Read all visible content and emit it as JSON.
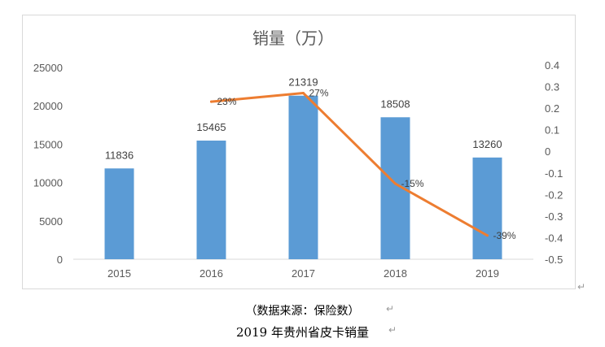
{
  "chart_data": {
    "type": "bar",
    "title": "销量（万）",
    "categories": [
      "2015",
      "2016",
      "2017",
      "2018",
      "2019"
    ],
    "series": [
      {
        "values": [
          11836,
          15465,
          21319,
          18508,
          13260
        ],
        "kind": "bar",
        "axis": "left",
        "color": "#5b9bd5"
      },
      {
        "values": [
          null,
          0.23,
          0.27,
          -0.15,
          -0.39
        ],
        "kind": "line",
        "axis": "right",
        "color": "#ed7d31"
      }
    ],
    "bar_labels": [
      "11836",
      "15465",
      "21319",
      "18508",
      "13260"
    ],
    "line_labels": [
      "",
      "23%",
      "27%",
      "-15%",
      "-39%"
    ],
    "ylim_left": [
      0,
      25000
    ],
    "yticks_left": [
      "25000",
      "20000",
      "15000",
      "10000",
      "5000",
      "0"
    ],
    "ylim_right": [
      -0.5,
      0.4
    ],
    "yticks_right": [
      "0.4",
      "0.3",
      "0.2",
      "0.1",
      "0",
      "-0.1",
      "-0.2",
      "-0.3",
      "-0.4",
      "-0.5"
    ],
    "grid": false,
    "legend": "none"
  },
  "caption": {
    "source": "（数据来源：保险数）",
    "title": "2019 年贵州省皮卡销量"
  }
}
